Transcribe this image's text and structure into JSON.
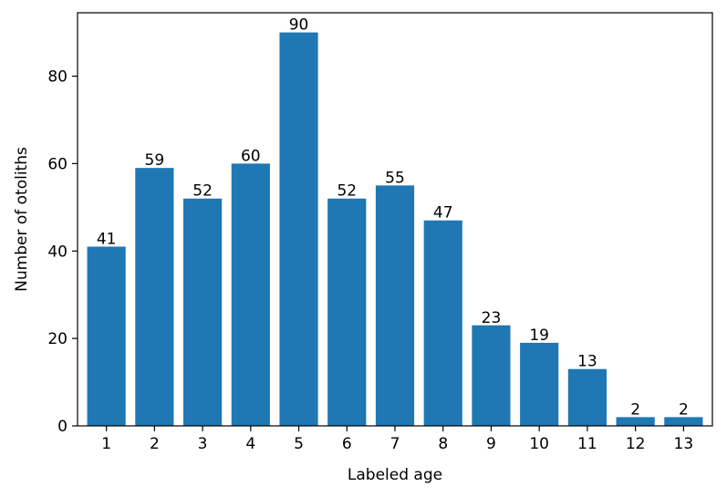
{
  "chart_data": {
    "type": "bar",
    "title": "",
    "xlabel": "Labeled age",
    "ylabel": "Number of otoliths",
    "categories": [
      "1",
      "2",
      "3",
      "4",
      "5",
      "6",
      "7",
      "8",
      "9",
      "10",
      "11",
      "12",
      "13"
    ],
    "values": [
      41,
      59,
      52,
      60,
      90,
      52,
      55,
      47,
      23,
      19,
      13,
      2,
      2
    ],
    "ylim": [
      0,
      94.5
    ],
    "yticks": [
      0,
      20,
      40,
      60,
      80
    ],
    "grid": false,
    "legend": "none",
    "bar_color": "#1f77b4",
    "data_labels": true
  }
}
